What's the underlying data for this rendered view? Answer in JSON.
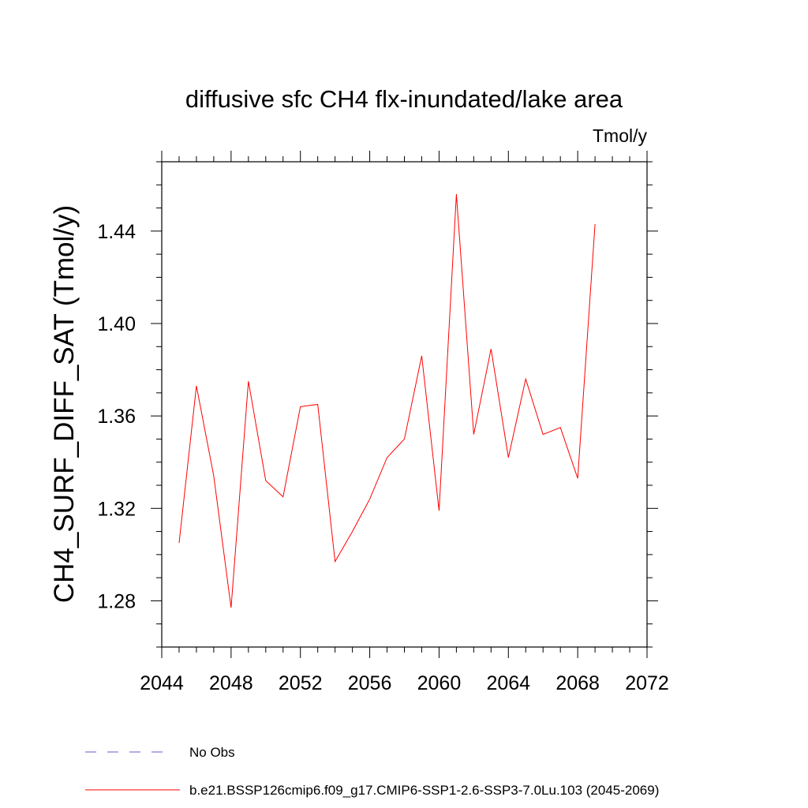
{
  "chart_data": {
    "type": "line",
    "title": "diffusive sfc CH4 flx-inundated/lake area",
    "units_label": "Tmol/y",
    "xlabel": "",
    "ylabel": "CH4_SURF_DIFF_SAT  (Tmol/y)",
    "xlim": [
      2044,
      2072
    ],
    "ylim": [
      1.26,
      1.47
    ],
    "x_ticks": [
      "2044",
      "2048",
      "2052",
      "2056",
      "2060",
      "2064",
      "2068",
      "2072"
    ],
    "y_ticks": [
      "1.28",
      "1.32",
      "1.36",
      "1.40",
      "1.44"
    ],
    "x": [
      2045,
      2046,
      2047,
      2048,
      2049,
      2050,
      2051,
      2052,
      2053,
      2054,
      2055,
      2056,
      2057,
      2058,
      2059,
      2060,
      2061,
      2062,
      2063,
      2064,
      2065,
      2066,
      2067,
      2068,
      2069
    ],
    "series": [
      {
        "name": "b.e21.BSSP126cmip6.f09_g17.CMIP6-SSP1-2.6-SSP3-7.0Lu.103 (2045-2069)",
        "color": "#ff0000",
        "values": [
          1.305,
          1.373,
          1.334,
          1.277,
          1.375,
          1.332,
          1.325,
          1.364,
          1.365,
          1.297,
          1.31,
          1.324,
          1.342,
          1.35,
          1.386,
          1.319,
          1.456,
          1.352,
          1.389,
          1.342,
          1.376,
          1.352,
          1.355,
          1.333,
          1.443
        ]
      }
    ],
    "legend": [
      {
        "label": "No Obs",
        "color": "#6a5acd",
        "style": "dashed"
      },
      {
        "label": "b.e21.BSSP126cmip6.f09_g17.CMIP6-SSP1-2.6-SSP3-7.0Lu.103 (2045-2069)",
        "color": "#ff0000",
        "style": "solid"
      }
    ],
    "legend_position": "bottom-left",
    "grid": false
  }
}
